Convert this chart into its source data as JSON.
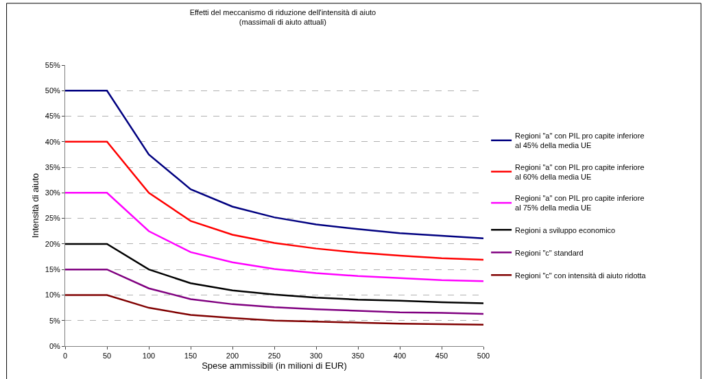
{
  "chart_data": {
    "type": "line",
    "title": "Effetti del meccanismo di riduzione dell'intensità di aiuto",
    "subtitle": "(massimali di aiuto attuali)",
    "xlabel": "Spese ammissibili (in milioni di EUR)",
    "ylabel": "Intensità di aiuto",
    "x": [
      0,
      50,
      100,
      150,
      200,
      250,
      300,
      350,
      400,
      450,
      500
    ],
    "series": [
      {
        "name": "Regioni \"a\" con PIL pro capite inferiore al 45% della media UE",
        "color": "#000080",
        "values": [
          50,
          50,
          37.5,
          30.7,
          27.3,
          25.2,
          23.8,
          22.9,
          22.1,
          21.6,
          21.1
        ]
      },
      {
        "name": "Regioni \"a\" con PIL pro capite inferiore al 60% della media UE",
        "color": "#ff0000",
        "values": [
          40,
          40,
          30,
          24.5,
          21.8,
          20.2,
          19.1,
          18.3,
          17.7,
          17.2,
          16.9
        ]
      },
      {
        "name": "Regioni \"a\" con PIL pro capite inferiore al 75% della media UE",
        "color": "#ff00ff",
        "values": [
          30,
          30,
          22.5,
          18.4,
          16.4,
          15.1,
          14.3,
          13.7,
          13.3,
          12.9,
          12.7
        ]
      },
      {
        "name": "Regioni a sviluppo economico",
        "color": "#000000",
        "values": [
          20,
          20,
          15,
          12.3,
          10.9,
          10.1,
          9.5,
          9.1,
          8.9,
          8.6,
          8.4
        ]
      },
      {
        "name": "Regioni \"c\" standard",
        "color": "#800080",
        "values": [
          15,
          15,
          11.3,
          9.2,
          8.2,
          7.6,
          7.2,
          6.9,
          6.6,
          6.5,
          6.3
        ]
      },
      {
        "name": "Regioni \"c\" con intensità di aiuto ridotta",
        "color": "#800000",
        "values": [
          10,
          10,
          7.5,
          6.1,
          5.5,
          5.0,
          4.8,
          4.6,
          4.4,
          4.3,
          4.2
        ]
      }
    ],
    "xlim": [
      0,
      500
    ],
    "xticks": [
      0,
      50,
      100,
      150,
      200,
      250,
      300,
      350,
      400,
      450,
      500
    ],
    "ylim": [
      0,
      55
    ],
    "yticks": [
      {
        "value": 0,
        "label": "0%"
      },
      {
        "value": 5,
        "label": "5%"
      },
      {
        "value": 10,
        "label": "10%"
      },
      {
        "value": 15,
        "label": "15%"
      },
      {
        "value": 20,
        "label": "20%"
      },
      {
        "value": 25,
        "label": "25%"
      },
      {
        "value": 30,
        "label": "30%"
      },
      {
        "value": 35,
        "label": "35%"
      },
      {
        "value": 40,
        "label": "40%"
      },
      {
        "value": 45,
        "label": "45%"
      },
      {
        "value": 50,
        "label": "50%"
      },
      {
        "value": 55,
        "label": "55%"
      }
    ],
    "grid": "y",
    "legend": "right",
    "marker": "none",
    "line_style": "solid"
  }
}
